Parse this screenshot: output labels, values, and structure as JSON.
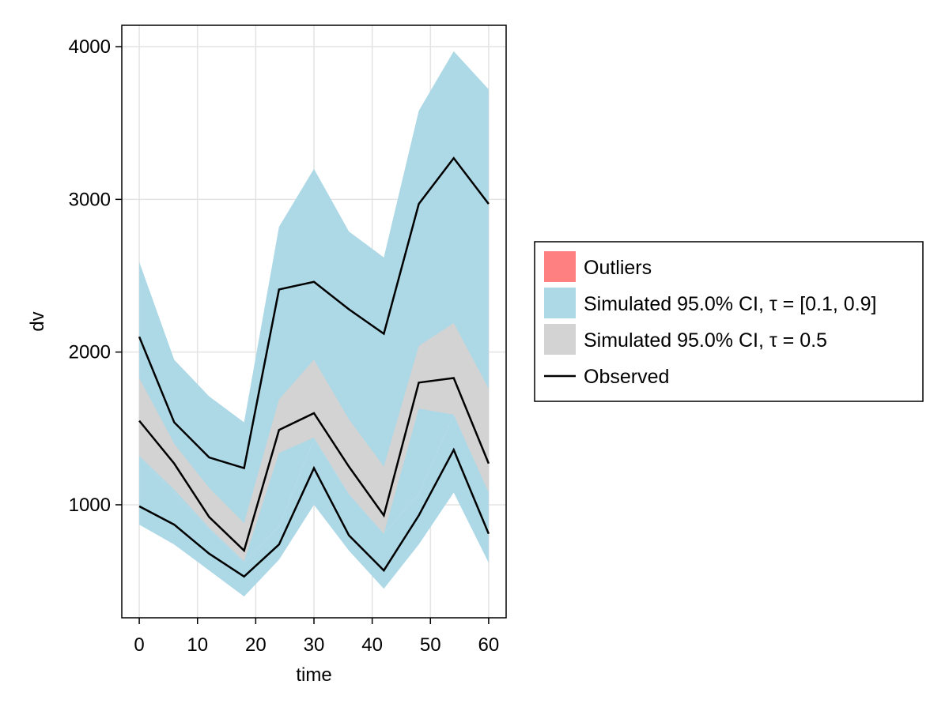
{
  "chart_data": {
    "type": "area",
    "title": "",
    "xlabel": "time",
    "ylabel": "dv",
    "xlim": [
      -3,
      63
    ],
    "ylim": [
      260,
      4140
    ],
    "xticks": [
      0,
      10,
      20,
      30,
      40,
      50,
      60
    ],
    "yticks": [
      1000,
      2000,
      3000,
      4000
    ],
    "grid": true,
    "legend_position": "right",
    "x": [
      0,
      6,
      12,
      18,
      24,
      30,
      36,
      42,
      48,
      54,
      60
    ],
    "bands": [
      {
        "legend": "ci-outer",
        "color": "#add8e6",
        "lower": [
          1310,
          1080,
          840,
          620,
          860,
          1430,
          1070,
          810,
          1070,
          1590,
          1090
        ],
        "upper": [
          2590,
          1950,
          1710,
          1540,
          2820,
          3200,
          2790,
          2620,
          3580,
          3970,
          3720
        ]
      },
      {
        "legend": "ci-outer",
        "color": "#add8e6",
        "lower": [
          870,
          740,
          570,
          400,
          640,
          1000,
          700,
          450,
          740,
          1080,
          620
        ]
      },
      {
        "legend": "ci-median",
        "color": "#d3d3d3",
        "lower": [
          1320,
          1100,
          850,
          630,
          1340,
          1440,
          1070,
          810,
          1630,
          1590,
          1080
        ],
        "upper": [
          1830,
          1400,
          1110,
          880,
          1690,
          1950,
          1560,
          1250,
          2040,
          2190,
          1760
        ]
      }
    ],
    "series": [
      {
        "values": [
          2100,
          1540,
          1310,
          1240,
          2410,
          2460,
          2280,
          2120,
          2970,
          3270,
          2970
        ]
      },
      {
        "values": [
          1550,
          1270,
          920,
          700,
          1490,
          1600,
          1250,
          930,
          1800,
          1830,
          1270
        ]
      },
      {
        "values": [
          990,
          870,
          680,
          530,
          740,
          1240,
          800,
          570,
          930,
          1360,
          810
        ]
      }
    ],
    "legend": {
      "outliers": {
        "label": "Outliers",
        "color": "#ff8080"
      },
      "ci_outer": {
        "label": "Simulated 95.0% CI, τ = [0.1, 0.9]",
        "color": "#add8e6"
      },
      "ci_median": {
        "label": "Simulated 95.0% CI, τ = 0.5",
        "color": "#d3d3d3"
      },
      "observed": {
        "label": "Observed",
        "color": "#000000"
      }
    }
  }
}
